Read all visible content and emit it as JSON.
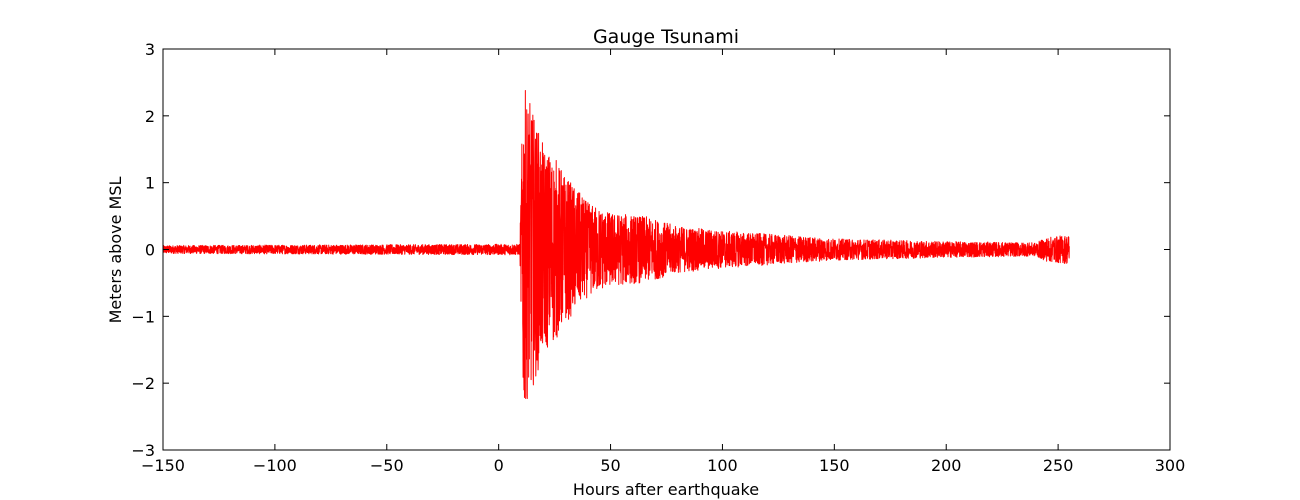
{
  "chart_data": {
    "type": "line",
    "title": "Gauge Tsunami",
    "xlabel": "Hours after earthquake",
    "ylabel": "Meters above MSL",
    "xlim": [
      -150,
      300
    ],
    "ylim": [
      -3,
      3
    ],
    "xticks": [
      -150,
      -100,
      -50,
      0,
      50,
      100,
      150,
      200,
      250,
      300
    ],
    "yticks": [
      -3,
      -2,
      -1,
      0,
      1,
      2,
      3
    ],
    "xtick_labels": [
      "−150",
      "−100",
      "−50",
      "0",
      "50",
      "100",
      "150",
      "200",
      "250",
      "300"
    ],
    "ytick_labels": [
      "−3",
      "−2",
      "−1",
      "0",
      "1",
      "2",
      "3"
    ],
    "grid": false,
    "series": [
      {
        "color": "#ff0000",
        "x_range": [
          -150,
          255
        ],
        "event_x": 10,
        "peak_max": 2.47,
        "peak_min": -2.23,
        "envelope": [
          {
            "x": -150,
            "amp": 0.06
          },
          {
            "x": 9.5,
            "amp": 0.08
          },
          {
            "x": 10,
            "amp": 1.1
          },
          {
            "x": 11,
            "amp": 2.47
          },
          {
            "x": 14,
            "amp": 2.2
          },
          {
            "x": 20,
            "amp": 1.55
          },
          {
            "x": 25,
            "amp": 1.4
          },
          {
            "x": 30,
            "amp": 1.1
          },
          {
            "x": 40,
            "amp": 0.7
          },
          {
            "x": 50,
            "amp": 0.55
          },
          {
            "x": 65,
            "amp": 0.5
          },
          {
            "x": 80,
            "amp": 0.35
          },
          {
            "x": 100,
            "amp": 0.28
          },
          {
            "x": 150,
            "amp": 0.16
          },
          {
            "x": 200,
            "amp": 0.12
          },
          {
            "x": 240,
            "amp": 0.1
          },
          {
            "x": 245,
            "amp": 0.18
          },
          {
            "x": 255,
            "amp": 0.22
          }
        ]
      }
    ]
  }
}
